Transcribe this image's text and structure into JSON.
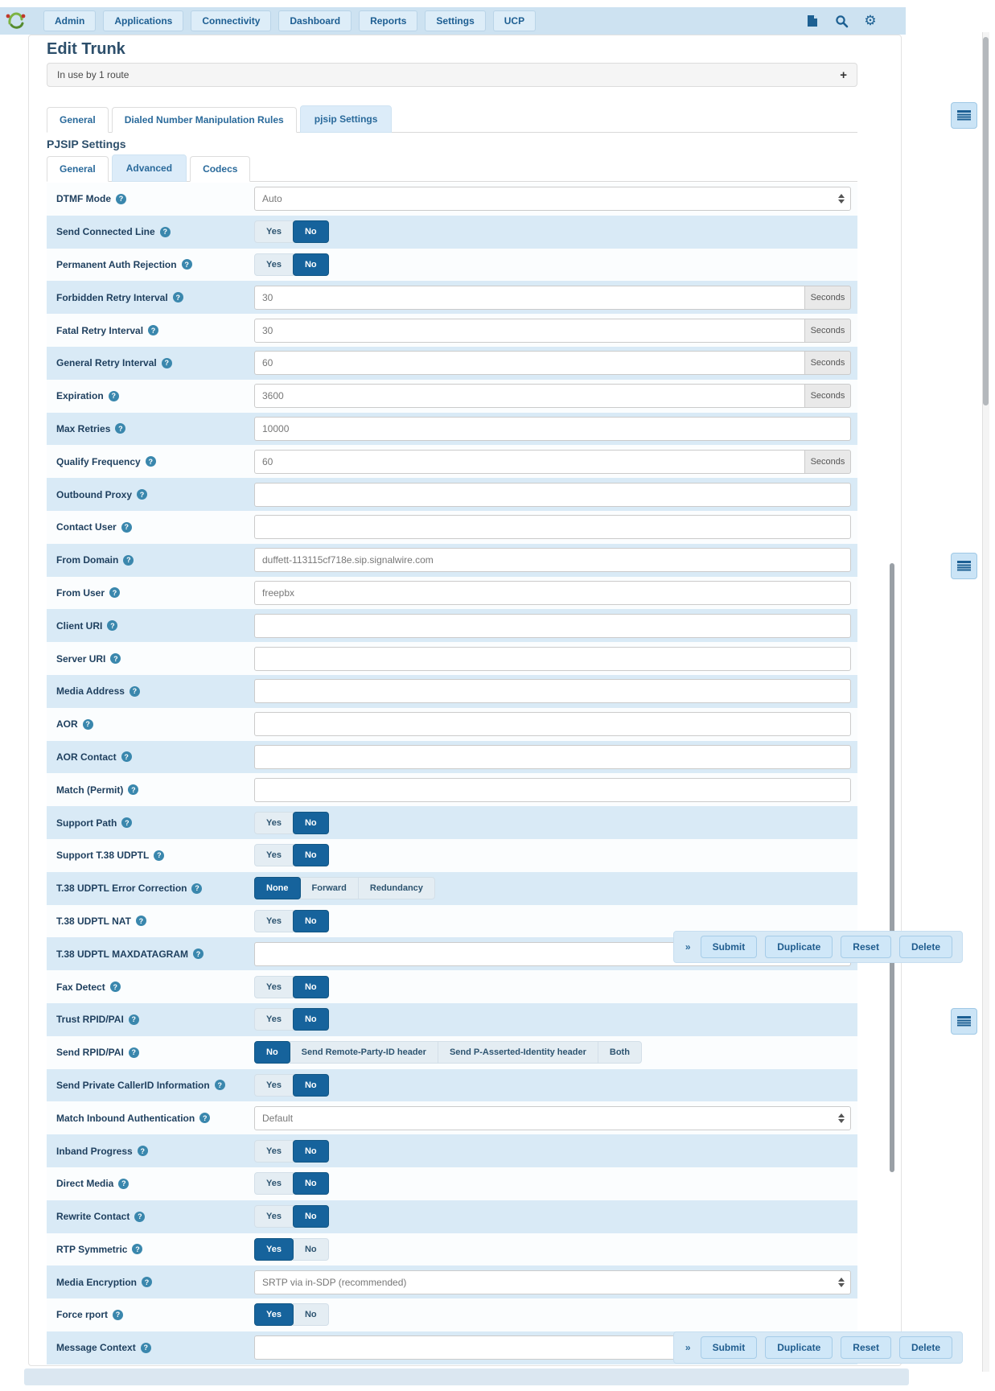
{
  "navbar": {
    "items": [
      "Admin",
      "Applications",
      "Connectivity",
      "Dashboard",
      "Reports",
      "Settings",
      "UCP"
    ],
    "icons": [
      "language-icon",
      "search-icon",
      "gear-icon"
    ]
  },
  "page": {
    "title": "Edit Trunk"
  },
  "notice": {
    "text": "In use by 1 route",
    "expand_glyph": "+"
  },
  "tabs": {
    "items": [
      "General",
      "Dialed Number Manipulation Rules",
      "pjsip Settings"
    ],
    "active": "pjsip Settings"
  },
  "section": {
    "title": "PJSIP Settings"
  },
  "subtabs": {
    "items": [
      "General",
      "Advanced",
      "Codecs"
    ],
    "active": "Advanced"
  },
  "actionbar": {
    "collapse_glyph": "»",
    "buttons": [
      "Submit",
      "Duplicate",
      "Reset",
      "Delete"
    ]
  },
  "colors": {
    "accent_active": "#16639c",
    "row_stripe": "#d9eaf6",
    "navbar_bg": "#cde2f1",
    "link_text": "#1f5c8e",
    "help_badge": "#3a87ad"
  },
  "form": {
    "rows": [
      {
        "label": "DTMF Mode",
        "type": "select",
        "value": "Auto"
      },
      {
        "label": "Send Connected Line",
        "type": "toggle",
        "options": [
          "Yes",
          "No"
        ],
        "selected": "No"
      },
      {
        "label": "Permanent Auth Rejection",
        "type": "toggle",
        "options": [
          "Yes",
          "No"
        ],
        "selected": "No"
      },
      {
        "label": "Forbidden Retry Interval",
        "type": "input-addon",
        "value": "30",
        "addon": "Seconds"
      },
      {
        "label": "Fatal Retry Interval",
        "type": "input-addon",
        "value": "30",
        "addon": "Seconds"
      },
      {
        "label": "General Retry Interval",
        "type": "input-addon",
        "value": "60",
        "addon": "Seconds"
      },
      {
        "label": "Expiration",
        "type": "input-addon",
        "value": "3600",
        "addon": "Seconds"
      },
      {
        "label": "Max Retries",
        "type": "input",
        "value": "10000"
      },
      {
        "label": "Qualify Frequency",
        "type": "input-addon",
        "value": "60",
        "addon": "Seconds"
      },
      {
        "label": "Outbound Proxy",
        "type": "input",
        "value": ""
      },
      {
        "label": "Contact User",
        "type": "input",
        "value": ""
      },
      {
        "label": "From Domain",
        "type": "input",
        "value": "duffett-113115cf718e.sip.signalwire.com"
      },
      {
        "label": "From User",
        "type": "input",
        "value": "freepbx"
      },
      {
        "label": "Client URI",
        "type": "input",
        "value": ""
      },
      {
        "label": "Server URI",
        "type": "input",
        "value": ""
      },
      {
        "label": "Media Address",
        "type": "input",
        "value": ""
      },
      {
        "label": "AOR",
        "type": "input",
        "value": ""
      },
      {
        "label": "AOR Contact",
        "type": "input",
        "value": ""
      },
      {
        "label": "Match (Permit)",
        "type": "input",
        "value": ""
      },
      {
        "label": "Support Path",
        "type": "toggle",
        "options": [
          "Yes",
          "No"
        ],
        "selected": "No"
      },
      {
        "label": "Support T.38 UDPTL",
        "type": "toggle",
        "options": [
          "Yes",
          "No"
        ],
        "selected": "No"
      },
      {
        "label": "T.38 UDPTL Error Correction",
        "type": "toggle",
        "options": [
          "None",
          "Forward",
          "Redundancy"
        ],
        "selected": "None"
      },
      {
        "label": "T.38 UDPTL NAT",
        "type": "toggle",
        "options": [
          "Yes",
          "No"
        ],
        "selected": "No"
      },
      {
        "label": "T.38 UDPTL MAXDATAGRAM",
        "type": "input",
        "value": ""
      },
      {
        "label": "Fax Detect",
        "type": "toggle",
        "options": [
          "Yes",
          "No"
        ],
        "selected": "No"
      },
      {
        "label": "Trust RPID/PAI",
        "type": "toggle",
        "options": [
          "Yes",
          "No"
        ],
        "selected": "No"
      },
      {
        "label": "Send RPID/PAI",
        "type": "toggle",
        "options": [
          "No",
          "Send Remote-Party-ID header",
          "Send P-Asserted-Identity header",
          "Both"
        ],
        "selected": "No"
      },
      {
        "label": "Send Private CallerID Information",
        "type": "toggle",
        "options": [
          "Yes",
          "No"
        ],
        "selected": "No"
      },
      {
        "label": "Match Inbound Authentication",
        "type": "select",
        "value": "Default"
      },
      {
        "label": "Inband Progress",
        "type": "toggle",
        "options": [
          "Yes",
          "No"
        ],
        "selected": "No"
      },
      {
        "label": "Direct Media",
        "type": "toggle",
        "options": [
          "Yes",
          "No"
        ],
        "selected": "No"
      },
      {
        "label": "Rewrite Contact",
        "type": "toggle",
        "options": [
          "Yes",
          "No"
        ],
        "selected": "No"
      },
      {
        "label": "RTP Symmetric",
        "type": "toggle",
        "options": [
          "Yes",
          "No"
        ],
        "selected": "Yes"
      },
      {
        "label": "Media Encryption",
        "type": "select",
        "value": "SRTP via in-SDP (recommended)"
      },
      {
        "label": "Force rport",
        "type": "toggle",
        "options": [
          "Yes",
          "No"
        ],
        "selected": "Yes"
      },
      {
        "label": "Message Context",
        "type": "input",
        "value": ""
      }
    ]
  }
}
